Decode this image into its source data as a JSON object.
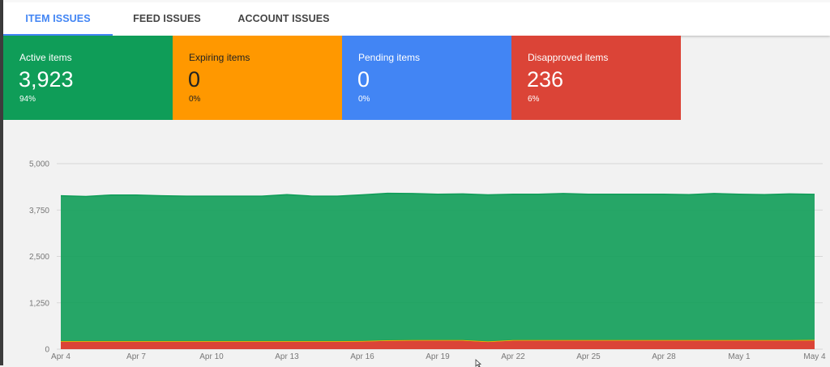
{
  "tabs": [
    {
      "label": "ITEM ISSUES",
      "active": true
    },
    {
      "label": "FEED ISSUES",
      "active": false
    },
    {
      "label": "ACCOUNT ISSUES",
      "active": false
    }
  ],
  "cards": [
    {
      "title": "Active items",
      "value": "3,923",
      "pct": "94%",
      "color": "#0f9d58"
    },
    {
      "title": "Expiring items",
      "value": "0",
      "pct": "0%",
      "color": "#ff9800"
    },
    {
      "title": "Pending items",
      "value": "0",
      "pct": "0%",
      "color": "#4285f4"
    },
    {
      "title": "Disapproved items",
      "value": "236",
      "pct": "6%",
      "color": "#db4437"
    }
  ],
  "chart_data": {
    "type": "area",
    "stacked": true,
    "ylim": [
      0,
      5000
    ],
    "yticks": [
      "0",
      "1,250",
      "2,500",
      "3,750",
      "5,000"
    ],
    "xticks": [
      "Apr 4",
      "Apr 7",
      "Apr 10",
      "Apr 13",
      "Apr 16",
      "Apr 19",
      "Apr 22",
      "Apr 25",
      "Apr 28",
      "May 1",
      "May 4"
    ],
    "x": [
      "Apr 4",
      "Apr 5",
      "Apr 6",
      "Apr 7",
      "Apr 8",
      "Apr 9",
      "Apr 10",
      "Apr 11",
      "Apr 12",
      "Apr 13",
      "Apr 14",
      "Apr 15",
      "Apr 16",
      "Apr 17",
      "Apr 18",
      "Apr 19",
      "Apr 20",
      "Apr 21",
      "Apr 22",
      "Apr 23",
      "Apr 24",
      "Apr 25",
      "Apr 26",
      "Apr 27",
      "Apr 28",
      "Apr 29",
      "Apr 30",
      "May 1",
      "May 2",
      "May 3",
      "May 4"
    ],
    "grid": true,
    "series": [
      {
        "color": "#db4437",
        "values": [
          200,
          200,
          200,
          200,
          200,
          200,
          200,
          200,
          200,
          200,
          200,
          200,
          205,
          225,
          230,
          230,
          230,
          195,
          230,
          230,
          230,
          230,
          230,
          230,
          230,
          230,
          230,
          230,
          230,
          230,
          236
        ]
      },
      {
        "color": "#f4b400",
        "values": [
          15,
          15,
          15,
          15,
          15,
          15,
          15,
          15,
          15,
          15,
          15,
          15,
          15,
          15,
          15,
          15,
          15,
          15,
          15,
          15,
          15,
          15,
          15,
          15,
          15,
          15,
          15,
          15,
          15,
          15,
          15
        ]
      },
      {
        "color": "#0f9d58",
        "values": [
          3920,
          3900,
          3940,
          3940,
          3920,
          3910,
          3910,
          3910,
          3910,
          3950,
          3910,
          3910,
          3940,
          3960,
          3950,
          3930,
          3940,
          3950,
          3930,
          3930,
          3950,
          3930,
          3930,
          3930,
          3930,
          3920,
          3950,
          3930,
          3920,
          3940,
          3923
        ]
      }
    ]
  }
}
